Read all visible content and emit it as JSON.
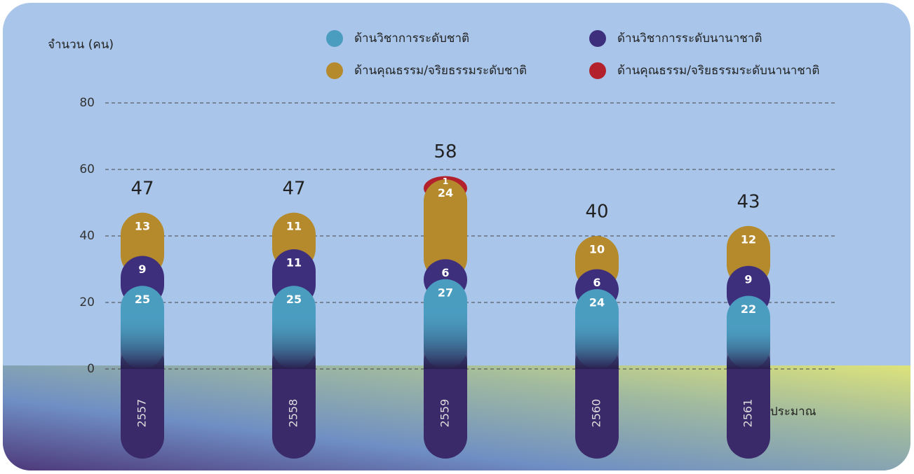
{
  "chart_data": {
    "type": "stacked-bar",
    "y_label": "จำนวน (คน)",
    "x_label": "ปีงบประมาณ",
    "categories": [
      "2557",
      "2558",
      "2559",
      "2560",
      "2561"
    ],
    "series": [
      {
        "name": "ด้านวิชาการระดับชาติ",
        "color": "#4b9dc0",
        "values": [
          25,
          25,
          27,
          24,
          22
        ]
      },
      {
        "name": "ด้านวิชาการระดับนานาชาติ",
        "color": "#3e2f7d",
        "values": [
          9,
          11,
          6,
          6,
          9
        ]
      },
      {
        "name": "ด้านคุณธรรม/จริยธรรมระดับชาติ",
        "color": "#b58a2c",
        "values": [
          13,
          11,
          24,
          10,
          12
        ]
      },
      {
        "name": "ด้านคุณธรรม/จริยธรรมระดับนานาชาติ",
        "color": "#b3222c",
        "values": [
          0,
          0,
          1,
          0,
          0
        ]
      }
    ],
    "totals": [
      47,
      47,
      58,
      40,
      43
    ],
    "ylim": [
      0,
      80
    ],
    "yticks": [
      0,
      20,
      40,
      60,
      80
    ],
    "grid": true
  }
}
